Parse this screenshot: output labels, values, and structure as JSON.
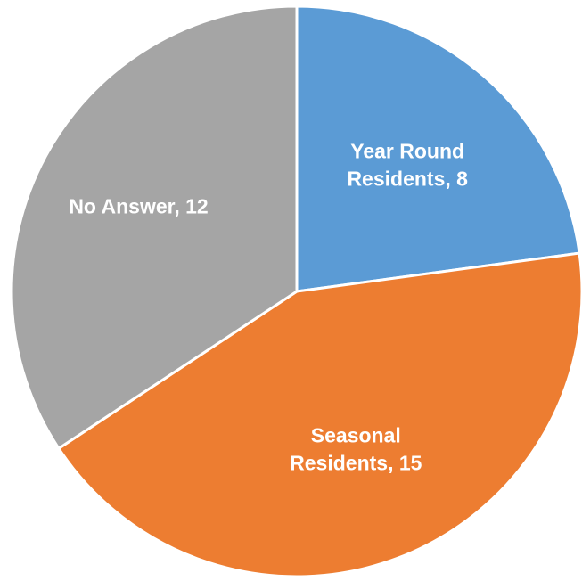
{
  "chart_data": {
    "type": "pie",
    "categories": [
      "Year Round Residents",
      "Seasonal Residents",
      "No Answer"
    ],
    "values": [
      8,
      15,
      12
    ],
    "colors": [
      "#5b9bd5",
      "#ed7d31",
      "#a5a5a5"
    ],
    "labels": [
      [
        "Year Round",
        "Residents, 8"
      ],
      [
        "Seasonal",
        "Residents, 15"
      ],
      [
        "No Answer, 12"
      ]
    ],
    "start": "top",
    "direction": "clockwise"
  }
}
